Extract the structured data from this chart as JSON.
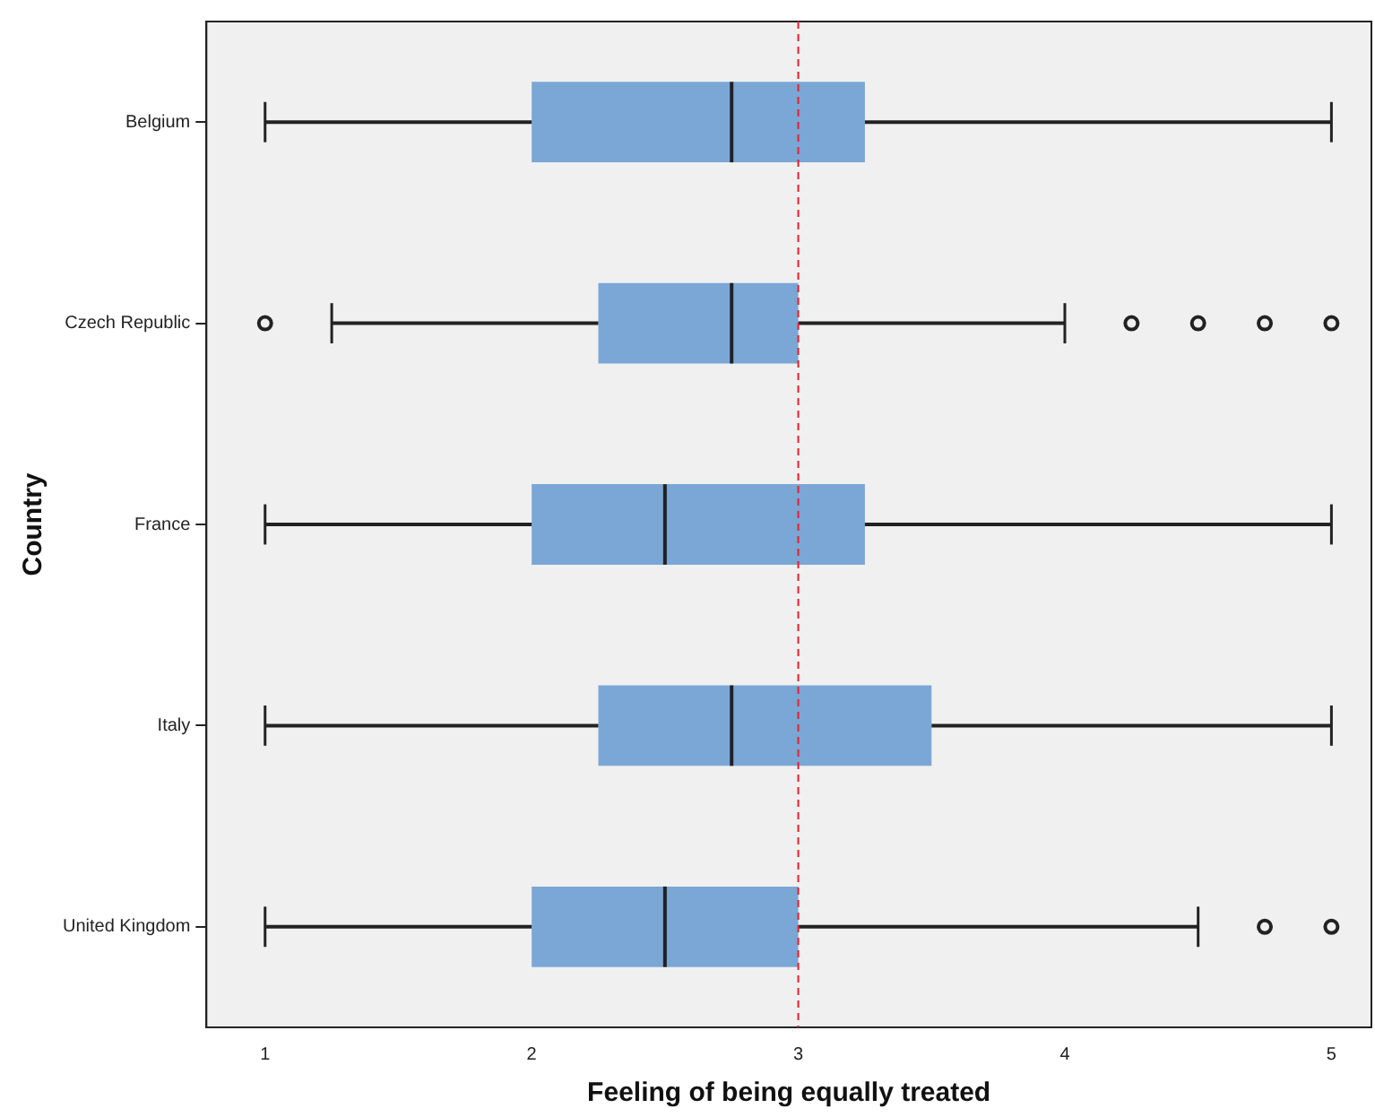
{
  "chart_data": {
    "type": "box",
    "orientation": "horizontal",
    "xlabel": "Feeling of being equally treated",
    "ylabel": "Country",
    "categories": [
      "Belgium",
      "Czech Republic",
      "France",
      "Italy",
      "United Kingdom"
    ],
    "color": "#7aa7d6",
    "boxes": [
      {
        "low": 1,
        "q1": 2,
        "median": 2.75,
        "q3": 3.25,
        "high": 5
      },
      {
        "low": 1.25,
        "q1": 2.25,
        "median": 2.75,
        "q3": 3,
        "high": 4,
        "outliers": [
          1,
          4.25,
          4.5,
          4.75,
          5
        ]
      },
      {
        "low": 1,
        "q1": 2,
        "median": 2.5,
        "q3": 3.25,
        "high": 5
      },
      {
        "low": 1,
        "q1": 2.25,
        "median": 2.75,
        "q3": 3.5,
        "high": 5
      },
      {
        "low": 1,
        "q1": 2,
        "median": 2.5,
        "q3": 3,
        "high": 4.5,
        "outliers": [
          4.75,
          5
        ]
      }
    ],
    "xlim": [
      0.78,
      5.15
    ],
    "xticks": [
      1,
      2,
      3,
      4,
      5
    ],
    "ref_lines": [
      {
        "axis": "x",
        "value": 3,
        "color": "#e8202a",
        "line_style": "dashed"
      }
    ],
    "grid": false,
    "legend": false
  }
}
